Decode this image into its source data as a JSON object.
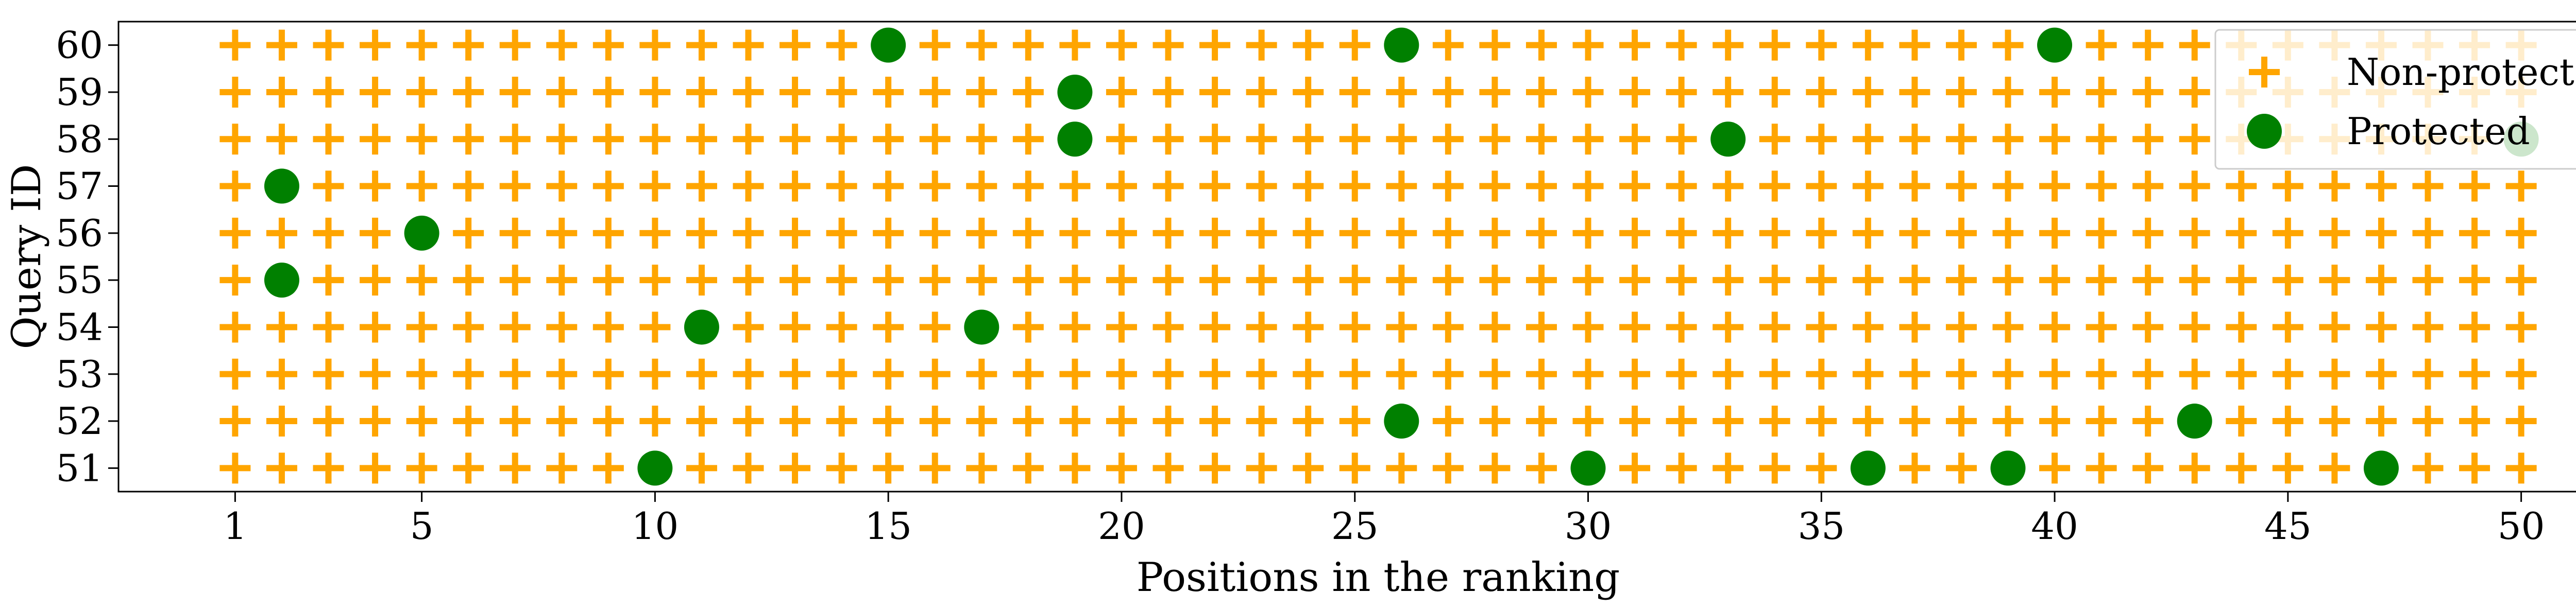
{
  "chart_data": {
    "type": "scatter",
    "xlabel": "Positions in the ranking",
    "ylabel": "Query ID",
    "x_ticks": [
      1,
      5,
      10,
      15,
      20,
      25,
      30,
      35,
      40,
      45,
      50
    ],
    "y_ticks": [
      51,
      52,
      53,
      54,
      55,
      56,
      57,
      58,
      59,
      60
    ],
    "xlim": [
      -1.5,
      52.5
    ],
    "ylim": [
      50.5,
      60.5
    ],
    "grid": false,
    "legend_position": "top-right",
    "series": [
      {
        "name": "Non-protected",
        "marker": "plus",
        "color": "#FFA500",
        "note_values": "every position 1-50 for every query 51-60 except those listed under Protected",
        "x_range": [
          1,
          50
        ],
        "queries": [
          51,
          52,
          53,
          54,
          55,
          56,
          57,
          58,
          59,
          60
        ]
      },
      {
        "name": "Protected",
        "marker": "circle",
        "color": "#008000",
        "points": [
          {
            "x": 15,
            "y": 60
          },
          {
            "x": 26,
            "y": 60
          },
          {
            "x": 40,
            "y": 60
          },
          {
            "x": 19,
            "y": 59
          },
          {
            "x": 19,
            "y": 58
          },
          {
            "x": 33,
            "y": 58
          },
          {
            "x": 50,
            "y": 58
          },
          {
            "x": 2,
            "y": 57
          },
          {
            "x": 5,
            "y": 56
          },
          {
            "x": 2,
            "y": 55
          },
          {
            "x": 11,
            "y": 54
          },
          {
            "x": 17,
            "y": 54
          },
          {
            "x": 26,
            "y": 52
          },
          {
            "x": 43,
            "y": 52
          },
          {
            "x": 10,
            "y": 51
          },
          {
            "x": 30,
            "y": 51
          },
          {
            "x": 36,
            "y": 51
          },
          {
            "x": 39,
            "y": 51
          },
          {
            "x": 47,
            "y": 51
          }
        ]
      }
    ]
  }
}
